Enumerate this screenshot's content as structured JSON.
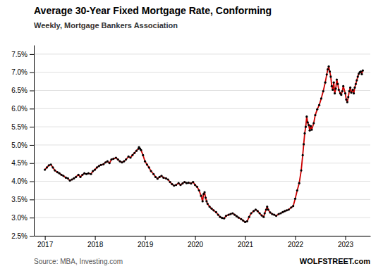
{
  "chart_data": {
    "type": "line",
    "title": "Average 30-Year Fixed Mortgage Rate, Conforming",
    "subtitle": "Weekly, Mortgage Bankers Association",
    "annotations": [
      "Source: MBA, Investing.com",
      "WOLFSTREET.com"
    ],
    "color": "#cc0000",
    "marker": "circle",
    "grid": "y",
    "xlim": [
      2016.78,
      2023.5
    ],
    "xticks": [
      2017,
      2018,
      2019,
      2020,
      2021,
      2022,
      2023
    ],
    "ylim": [
      2.5,
      7.75
    ],
    "yticks": [
      {
        "value": 2.5,
        "label": "2.5%"
      },
      {
        "value": 3.0,
        "label": "3.0%"
      },
      {
        "value": 3.5,
        "label": "3.5%"
      },
      {
        "value": 4.0,
        "label": "4.0%"
      },
      {
        "value": 4.5,
        "label": "4.5%"
      },
      {
        "value": 5.0,
        "label": "5.0%"
      },
      {
        "value": 5.5,
        "label": "5.5%"
      },
      {
        "value": 6.0,
        "label": "6.0%"
      },
      {
        "value": 6.5,
        "label": "6.5%"
      },
      {
        "value": 7.0,
        "label": "7.0%"
      },
      {
        "value": 7.5,
        "label": "7.5%"
      }
    ],
    "x": [
      2017.0,
      2017.04,
      2017.08,
      2017.12,
      2017.16,
      2017.2,
      2017.25,
      2017.29,
      2017.33,
      2017.37,
      2017.42,
      2017.46,
      2017.5,
      2017.54,
      2017.58,
      2017.62,
      2017.67,
      2017.71,
      2017.75,
      2017.79,
      2017.83,
      2017.87,
      2017.92,
      2017.96,
      2018.0,
      2018.04,
      2018.08,
      2018.12,
      2018.17,
      2018.21,
      2018.25,
      2018.29,
      2018.33,
      2018.37,
      2018.42,
      2018.46,
      2018.5,
      2018.54,
      2018.58,
      2018.62,
      2018.67,
      2018.71,
      2018.75,
      2018.79,
      2018.83,
      2018.87,
      2018.88,
      2018.9,
      2018.92,
      2018.96,
      2019.0,
      2019.04,
      2019.08,
      2019.12,
      2019.17,
      2019.21,
      2019.25,
      2019.29,
      2019.33,
      2019.37,
      2019.42,
      2019.46,
      2019.5,
      2019.54,
      2019.58,
      2019.62,
      2019.67,
      2019.71,
      2019.75,
      2019.79,
      2019.83,
      2019.87,
      2019.92,
      2019.96,
      2020.0,
      2020.04,
      2020.08,
      2020.12,
      2020.15,
      2020.17,
      2020.19,
      2020.21,
      2020.23,
      2020.25,
      2020.29,
      2020.33,
      2020.37,
      2020.42,
      2020.46,
      2020.5,
      2020.54,
      2020.58,
      2020.62,
      2020.67,
      2020.71,
      2020.75,
      2020.79,
      2020.83,
      2020.87,
      2020.92,
      2020.96,
      2021.0,
      2021.04,
      2021.08,
      2021.12,
      2021.17,
      2021.21,
      2021.25,
      2021.29,
      2021.33,
      2021.37,
      2021.39,
      2021.42,
      2021.44,
      2021.46,
      2021.5,
      2021.54,
      2021.58,
      2021.62,
      2021.67,
      2021.71,
      2021.75,
      2021.79,
      2021.83,
      2021.87,
      2021.92,
      2021.96,
      2022.0,
      2022.04,
      2022.08,
      2022.12,
      2022.15,
      2022.17,
      2022.19,
      2022.21,
      2022.23,
      2022.25,
      2022.27,
      2022.29,
      2022.31,
      2022.33,
      2022.37,
      2022.4,
      2022.44,
      2022.48,
      2022.52,
      2022.56,
      2022.6,
      2022.63,
      2022.65,
      2022.67,
      2022.69,
      2022.71,
      2022.73,
      2022.75,
      2022.77,
      2022.79,
      2022.81,
      2022.83,
      2022.85,
      2022.87,
      2022.9,
      2022.92,
      2022.94,
      2022.96,
      2023.0,
      2023.02,
      2023.04,
      2023.06,
      2023.08,
      2023.1,
      2023.12,
      2023.15,
      2023.17,
      2023.19,
      2023.21,
      2023.23,
      2023.25,
      2023.27,
      2023.29,
      2023.31,
      2023.33,
      2023.35
    ],
    "values": [
      4.32,
      4.38,
      4.44,
      4.46,
      4.38,
      4.3,
      4.25,
      4.22,
      4.18,
      4.15,
      4.1,
      4.08,
      4.02,
      4.05,
      4.08,
      4.12,
      4.18,
      4.12,
      4.18,
      4.22,
      4.2,
      4.22,
      4.2,
      4.28,
      4.32,
      4.38,
      4.42,
      4.45,
      4.47,
      4.52,
      4.55,
      4.5,
      4.6,
      4.62,
      4.65,
      4.6,
      4.55,
      4.52,
      4.55,
      4.6,
      4.68,
      4.65,
      4.72,
      4.78,
      4.84,
      4.9,
      4.94,
      4.9,
      4.86,
      4.72,
      4.55,
      4.46,
      4.38,
      4.28,
      4.2,
      4.12,
      4.07,
      4.12,
      4.15,
      4.1,
      4.08,
      4.05,
      3.98,
      3.92,
      3.88,
      3.9,
      3.95,
      3.9,
      3.94,
      3.98,
      3.95,
      3.96,
      3.94,
      3.98,
      3.9,
      3.85,
      3.75,
      3.6,
      3.45,
      3.65,
      3.7,
      3.55,
      3.45,
      3.38,
      3.3,
      3.25,
      3.2,
      3.15,
      3.08,
      3.02,
      2.99,
      2.98,
      3.05,
      3.08,
      3.1,
      3.12,
      3.08,
      3.04,
      3.0,
      2.96,
      2.92,
      2.88,
      2.9,
      3.02,
      3.12,
      3.18,
      3.22,
      3.18,
      3.12,
      3.06,
      3.02,
      3.12,
      3.22,
      3.3,
      3.22,
      3.14,
      3.1,
      3.08,
      3.05,
      3.1,
      3.12,
      3.15,
      3.18,
      3.2,
      3.22,
      3.28,
      3.32,
      3.52,
      3.75,
      3.95,
      4.3,
      4.72,
      5.02,
      5.32,
      5.5,
      5.78,
      5.62,
      5.55,
      5.4,
      5.52,
      5.42,
      5.6,
      5.82,
      5.98,
      6.1,
      6.28,
      6.48,
      6.72,
      6.94,
      7.08,
      7.16,
      7.02,
      6.88,
      6.62,
      6.52,
      6.72,
      6.42,
      6.55,
      6.8,
      6.68,
      6.52,
      6.42,
      6.38,
      6.48,
      6.62,
      6.42,
      6.25,
      6.18,
      6.32,
      6.48,
      6.58,
      6.44,
      6.52,
      6.42,
      6.58,
      6.68,
      6.78,
      6.88,
      6.96,
      7.0,
      7.02,
      6.95,
      7.05
    ]
  }
}
